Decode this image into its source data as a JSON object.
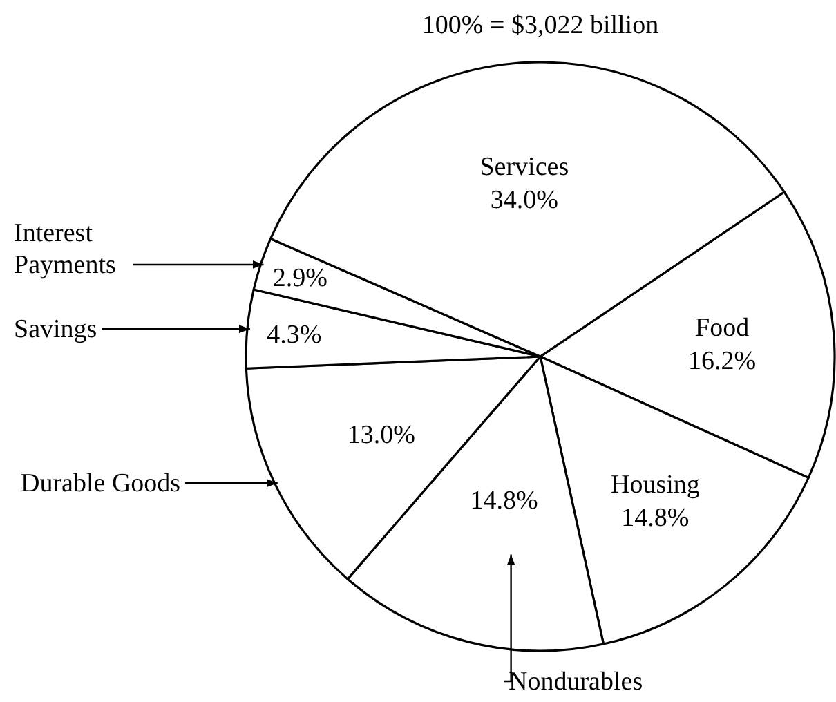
{
  "chart_data": {
    "type": "pie",
    "title": "100% = $3,022 billion",
    "categories": [
      "Food",
      "Housing",
      "Nondurables",
      "Durable Goods",
      "Savings",
      "Interest Payments",
      "Services"
    ],
    "values": [
      16.2,
      14.8,
      14.8,
      13.0,
      4.3,
      2.9,
      34.0
    ],
    "value_labels": [
      "16.2%",
      "14.8%",
      "14.8%",
      "13.0%",
      "4.3%",
      "2.9%",
      "34.0%"
    ],
    "colors": [
      "#ffffff",
      "#ffffff",
      "#ffffff",
      "#ffffff",
      "#ffffff",
      "#ffffff",
      "#ffffff"
    ]
  }
}
